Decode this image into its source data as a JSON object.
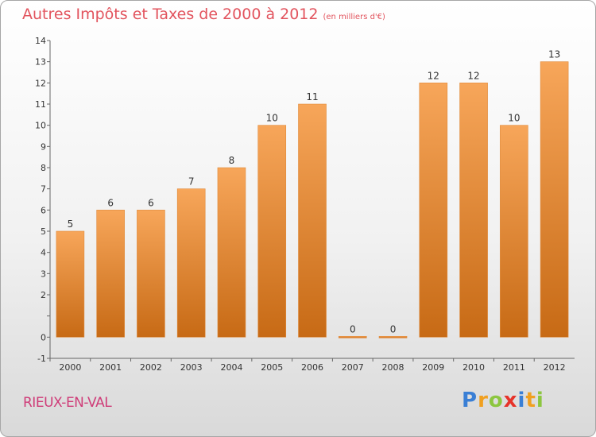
{
  "title": "Autres Impôts et Taxes de 2000 à 2012",
  "title_unit": "(en milliers d'€)",
  "commune": "RIEUX-EN-VAL",
  "logo": {
    "letters": [
      {
        "char": "P",
        "color": "#3a7fd5"
      },
      {
        "char": "r",
        "color": "#f0a020"
      },
      {
        "char": "o",
        "color": "#8cc63f"
      },
      {
        "char": "x",
        "color": "#e6332a"
      },
      {
        "char": "i",
        "color": "#3a7fd5"
      },
      {
        "char": "t",
        "color": "#f0a020"
      },
      {
        "char": "i",
        "color": "#8cc63f"
      }
    ]
  },
  "chart_data": {
    "type": "bar",
    "categories": [
      "2000",
      "2001",
      "2002",
      "2003",
      "2004",
      "2005",
      "2006",
      "2007",
      "2008",
      "2009",
      "2010",
      "2011",
      "2012"
    ],
    "values": [
      5,
      6,
      6,
      7,
      8,
      10,
      11,
      0,
      0,
      12,
      12,
      10,
      13
    ],
    "value_labels": [
      "5",
      "6",
      "6",
      "7",
      "8",
      "10",
      "11",
      "0",
      "0",
      "12",
      "12",
      "10",
      "13"
    ],
    "yticks": [
      -1,
      0,
      1,
      2,
      3,
      4,
      5,
      6,
      7,
      8,
      9,
      10,
      11,
      12,
      13,
      14
    ],
    "ytick_labels": [
      "-1",
      "0",
      "",
      "2",
      "3",
      "4",
      "5",
      "6",
      "7",
      "8",
      "9",
      "10",
      "11",
      "12",
      "13",
      "14"
    ],
    "ylim": [
      -1,
      14
    ],
    "grid": false,
    "bar_color_top": "#f7a65a",
    "bar_color_bottom": "#c76a15"
  }
}
